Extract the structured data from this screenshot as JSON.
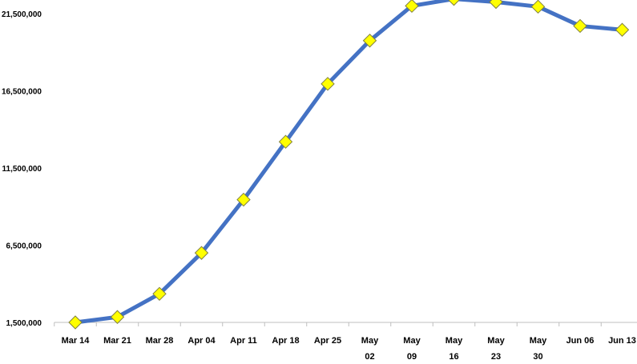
{
  "chart_data": {
    "type": "line",
    "categories": [
      "Mar 14",
      "Mar 21",
      "Mar 28",
      "Apr 04",
      "Apr 11",
      "Apr 18",
      "Apr 25",
      "May 02",
      "May 09",
      "May 16",
      "May 23",
      "May 30",
      "Jun 06",
      "Jun 13"
    ],
    "category_lines": [
      [
        "Mar 14"
      ],
      [
        "Mar 21"
      ],
      [
        "Mar 28"
      ],
      [
        "Apr 04"
      ],
      [
        "Apr 11"
      ],
      [
        "Apr 18"
      ],
      [
        "Apr 25"
      ],
      [
        "May",
        "02"
      ],
      [
        "May",
        "09"
      ],
      [
        "May",
        "16"
      ],
      [
        "May",
        "23"
      ],
      [
        "May",
        "30"
      ],
      [
        "Jun 06"
      ],
      [
        "Jun 13"
      ]
    ],
    "series": [
      {
        "values": [
          1500000,
          1850000,
          3350000,
          6000000,
          9450000,
          13200000,
          16950000,
          19750000,
          22000000,
          22450000,
          22250000,
          21950000,
          20700000,
          20450000
        ]
      }
    ],
    "yticks": [
      1500000,
      6500000,
      11500000,
      16500000,
      21500000
    ],
    "ytick_labels": [
      "1,500,000",
      "6,500,000",
      "11,500,000",
      "16,500,000",
      "21,500,000"
    ],
    "ylim": [
      1500000,
      22300000
    ],
    "line_color": "#4472C4",
    "marker_fill": "#FFFF00",
    "marker_stroke": "#7F7F3F",
    "marker": "diamond",
    "grid": false,
    "legend": "none"
  }
}
